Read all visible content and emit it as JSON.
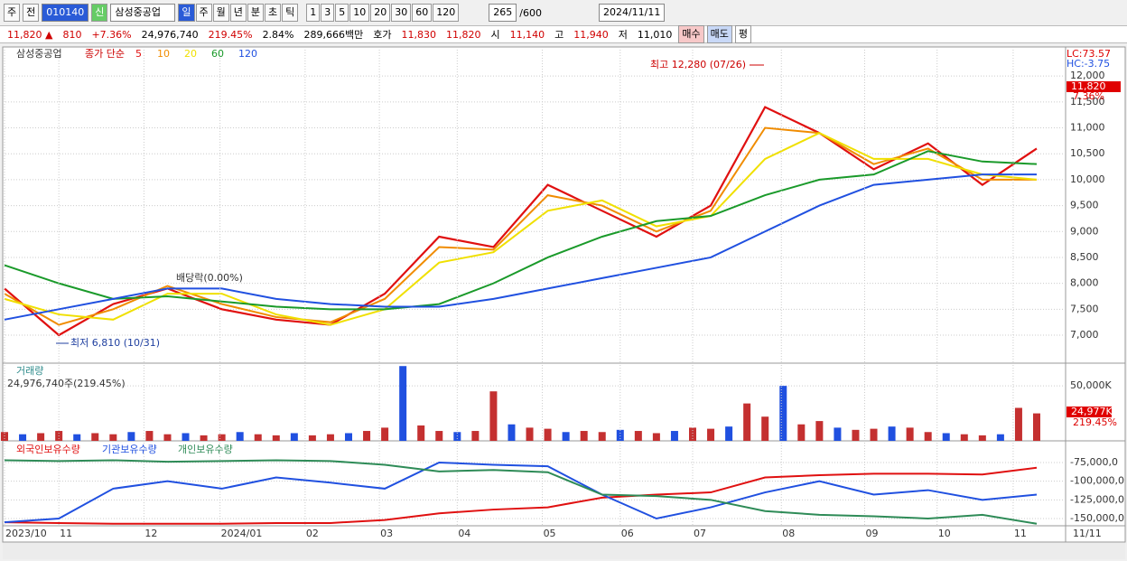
{
  "toolbar": {
    "market": "주",
    "view": "전",
    "code": "010140",
    "new": "신",
    "name": "삼성중공업",
    "periods": [
      "일",
      "주",
      "월",
      "년",
      "분",
      "초",
      "틱"
    ],
    "intervals": [
      "1",
      "3",
      "5",
      "10",
      "20",
      "30",
      "60",
      "120"
    ],
    "count": "265",
    "max": "/600",
    "date": "2024/11/11"
  },
  "info": [
    "11,820 ▲",
    "810",
    "+7.36%",
    "24,976,740",
    "219.45%",
    "2.84%",
    "289,666백만",
    "호가",
    "11,830",
    "11,820",
    "시",
    "11,140",
    "고",
    "11,940",
    "저",
    "11,010"
  ],
  "buttons": [
    "매수",
    "매도",
    "평"
  ],
  "chart_data": [
    {
      "type": "line",
      "legend": [
        "삼성중공업",
        "종가 단순"
      ],
      "lc": "LC:73.57",
      "hc": "HC:-3.75",
      "last_label": "11,820",
      "change_label": "7.36%",
      "annotations": [
        "최고 12,280 (07/26)",
        "최저 6,810 (10/31)",
        "배당락(0.00%)"
      ],
      "xlim": [
        0,
        57
      ],
      "ylim": [
        6460,
        12560
      ],
      "yticks": [
        {
          "value": 12000,
          "label": "12,000"
        },
        {
          "value": 11500,
          "label": "11,500"
        },
        {
          "value": 11000,
          "label": "11,000"
        },
        {
          "value": 10500,
          "label": "10,500"
        },
        {
          "value": 10000,
          "label": "10,000"
        },
        {
          "value": 9500,
          "label": "9,500"
        },
        {
          "value": 9000,
          "label": "9,000"
        },
        {
          "value": 8500,
          "label": "8,500"
        },
        {
          "value": 8000,
          "label": "8,000"
        },
        {
          "value": 7500,
          "label": "7,500"
        },
        {
          "value": 7000,
          "label": "7,000"
        }
      ],
      "x": [
        0,
        3,
        6,
        9,
        12,
        15,
        18,
        21,
        24,
        27,
        30,
        33,
        36,
        39,
        42,
        45,
        48,
        51,
        54,
        57
      ],
      "series": [
        {
          "name": "5",
          "color": "#e01010",
          "values": [
            7900,
            7000,
            7600,
            7900,
            7500,
            7300,
            7200,
            7800,
            8900,
            8700,
            9900,
            9400,
            8900,
            9500,
            11400,
            10900,
            10200,
            10700,
            9900,
            10600
          ]
        },
        {
          "name": "10",
          "color": "#f08c00",
          "values": [
            7800,
            7200,
            7500,
            7950,
            7600,
            7350,
            7250,
            7700,
            8700,
            8650,
            9700,
            9500,
            9000,
            9400,
            11000,
            10900,
            10300,
            10600,
            10000,
            10000
          ]
        },
        {
          "name": "20",
          "color": "#f0e000",
          "values": [
            7700,
            7400,
            7300,
            7800,
            7800,
            7400,
            7200,
            7500,
            8400,
            8600,
            9400,
            9600,
            9100,
            9300,
            10400,
            10900,
            10400,
            10400,
            10100,
            10000
          ]
        },
        {
          "name": "60",
          "color": "#1a9a2a",
          "values": [
            8350,
            8000,
            7700,
            7750,
            7650,
            7550,
            7500,
            7500,
            7600,
            8000,
            8500,
            8900,
            9200,
            9300,
            9700,
            10000,
            10100,
            10550,
            10350,
            10300
          ]
        },
        {
          "name": "120",
          "color": "#2050e0",
          "values": [
            7300,
            7500,
            7700,
            7900,
            7900,
            7700,
            7600,
            7550,
            7550,
            7700,
            7900,
            8100,
            8300,
            8500,
            9000,
            9500,
            9900,
            10000,
            10100,
            10100
          ]
        }
      ]
    },
    {
      "type": "bar",
      "title": "거래량",
      "subtitle": "24,976,740주(219.45%)",
      "last_label": "24,977K",
      "change_label": "219.45%",
      "color": "#c43030",
      "xlim": [
        0,
        57
      ],
      "ylim": [
        0,
        69000
      ],
      "yticks": [
        {
          "value": 50000,
          "label": "50,000K"
        }
      ],
      "x": [
        0,
        1,
        2,
        3,
        4,
        5,
        6,
        7,
        8,
        9,
        10,
        11,
        12,
        13,
        14,
        15,
        16,
        17,
        18,
        19,
        20,
        21,
        22,
        23,
        24,
        25,
        26,
        27,
        28,
        29,
        30,
        31,
        32,
        33,
        34,
        35,
        36,
        37,
        38,
        39,
        40,
        41,
        42,
        43,
        44,
        45,
        46,
        47,
        48,
        49,
        50,
        51,
        52,
        53,
        54,
        55,
        56,
        57
      ],
      "values": [
        8000,
        6000,
        7000,
        9000,
        6000,
        7000,
        6000,
        8000,
        9000,
        6000,
        7000,
        5000,
        6000,
        8000,
        6000,
        5000,
        7000,
        5000,
        6000,
        7000,
        9000,
        12000,
        68000,
        14000,
        9000,
        8000,
        9000,
        45000,
        15000,
        12000,
        11000,
        8000,
        9000,
        8000,
        10000,
        9000,
        7000,
        9000,
        12000,
        11000,
        13000,
        34000,
        22000,
        50000,
        15000,
        18000,
        12000,
        10000,
        11000,
        13000,
        12000,
        8000,
        7000,
        6000,
        5000,
        6000,
        30000,
        24977
      ]
    },
    {
      "type": "line",
      "xlim": [
        0,
        57
      ],
      "ylim": [
        -159700,
        -48400
      ],
      "yticks": [
        {
          "value": -75000,
          "label": "-75,000,0"
        },
        {
          "value": -100000,
          "label": "-100,000,0"
        },
        {
          "value": -125000,
          "label": "-125,000,0"
        },
        {
          "value": -150000,
          "label": "-150,000,0"
        }
      ],
      "xticks": [
        {
          "value": 0,
          "label": "2023/10"
        },
        {
          "value": 3,
          "label": "11"
        },
        {
          "value": 7.7,
          "label": "12"
        },
        {
          "value": 11.9,
          "label": "2024/01"
        },
        {
          "value": 16.6,
          "label": "02"
        },
        {
          "value": 20.7,
          "label": "03"
        },
        {
          "value": 25,
          "label": "04"
        },
        {
          "value": 29.7,
          "label": "05"
        },
        {
          "value": 34,
          "label": "06"
        },
        {
          "value": 38,
          "label": "07"
        },
        {
          "value": 42.9,
          "label": "08"
        },
        {
          "value": 47.5,
          "label": "09"
        },
        {
          "value": 51.5,
          "label": "10"
        },
        {
          "value": 55.7,
          "label": "11"
        }
      ],
      "end_label": "11/11",
      "x": [
        0,
        3,
        6,
        9,
        12,
        15,
        18,
        21,
        24,
        27,
        30,
        33,
        36,
        39,
        42,
        45,
        48,
        51,
        54,
        57
      ],
      "series": [
        {
          "name": "외국인보유수량",
          "color": "#e01010",
          "values": [
            -155000,
            -156000,
            -157000,
            -157000,
            -157000,
            -156000,
            -156000,
            -152000,
            -143000,
            -138000,
            -135000,
            -122000,
            -118000,
            -115000,
            -95000,
            -92000,
            -90000,
            -90000,
            -91000,
            -82000
          ]
        },
        {
          "name": "기관보유수량",
          "color": "#2050e0",
          "values": [
            -155000,
            -150000,
            -110000,
            -100000,
            -110000,
            -95000,
            -102000,
            -110000,
            -75000,
            -78000,
            -80000,
            -118000,
            -150000,
            -135000,
            -115000,
            -100000,
            -118000,
            -112000,
            -125000,
            -118000
          ]
        },
        {
          "name": "개인보유수량",
          "color": "#2e8b57",
          "values": [
            -72000,
            -73000,
            -72000,
            -74000,
            -73000,
            -72000,
            -73000,
            -78000,
            -87000,
            -85000,
            -88000,
            -118000,
            -120000,
            -125000,
            -140000,
            -145000,
            -147000,
            -150000,
            -145000,
            -157000
          ]
        }
      ]
    }
  ]
}
